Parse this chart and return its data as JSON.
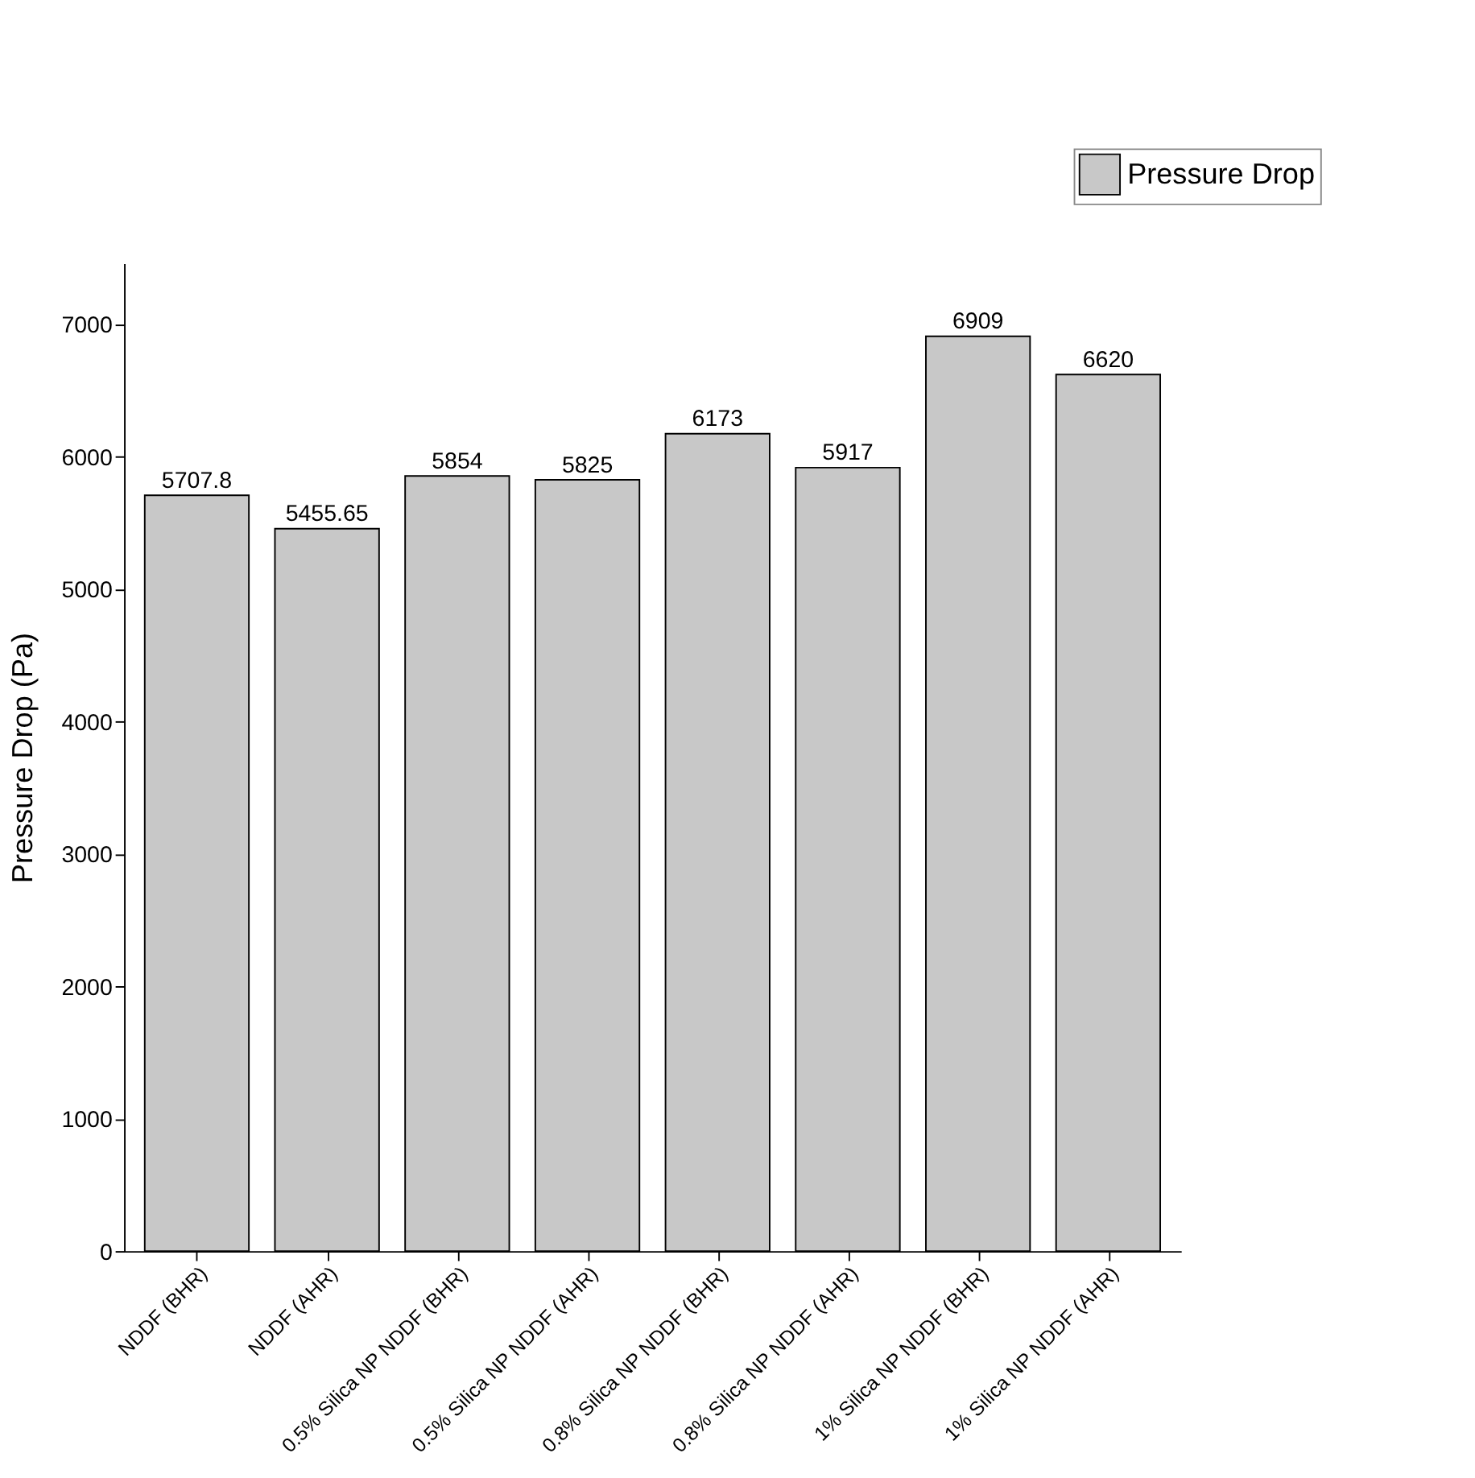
{
  "chart_data": {
    "type": "bar",
    "ylabel": "Pressure Drop (Pa)",
    "categories": [
      "NDDF (BHR)",
      "NDDF (AHR)",
      "0.5% Silica NP NDDF (BHR)",
      "0.5% Silica NP NDDF (AHR)",
      "0.8% Silica NP NDDF (BHR)",
      "0.8% Silica NP NDDF (AHR)",
      "1% Silica NP NDDF (BHR)",
      "1% Silica NP NDDF (AHR)"
    ],
    "series": [
      {
        "name": "Pressure Drop",
        "color": "#c8c8c8",
        "values": [
          5707.8,
          5455.65,
          5854,
          5825,
          6173,
          5917,
          6909,
          6620
        ]
      }
    ],
    "data_labels": true,
    "ylim": [
      0,
      7460
    ],
    "yticks": [
      0,
      1000,
      2000,
      3000,
      4000,
      5000,
      6000,
      7000
    ],
    "grid": false,
    "legend": "top right"
  }
}
